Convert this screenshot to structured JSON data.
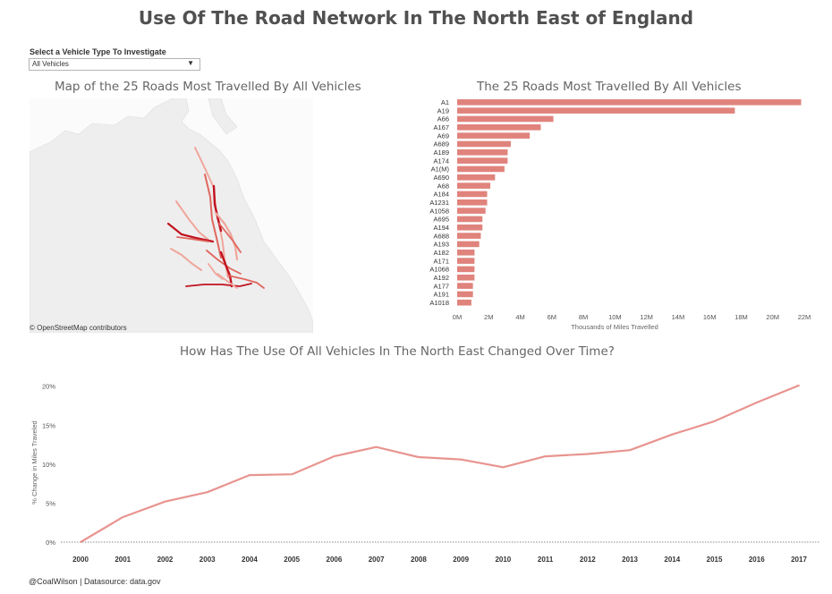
{
  "title": "Use Of The Road Network In The North East of England",
  "filter": {
    "label": "Select a Vehicle Type To Investigate",
    "selected": "All Vehicles"
  },
  "map": {
    "title": "Map of the 25 Roads Most Travelled By All Vehicles",
    "attribution": "© OpenStreetMap contributors"
  },
  "footer": "@CoalWilson | Datasource: data.gov",
  "colors": {
    "bar": "#e0837c",
    "line": "#e89490",
    "map_dark": "#c1121f",
    "map_light": "#f0a59b"
  },
  "chart_data": [
    {
      "type": "bar",
      "title": "The 25 Roads Most Travelled By All Vehicles",
      "xlabel": "Thousands of Miles Travelled",
      "ylabel": "",
      "categories": [
        "A1",
        "A19",
        "A66",
        "A167",
        "A69",
        "A689",
        "A189",
        "A174",
        "A1(M)",
        "A690",
        "A68",
        "A184",
        "A1231",
        "A1058",
        "A695",
        "A194",
        "A688",
        "A193",
        "A182",
        "A171",
        "A1068",
        "A192",
        "A177",
        "A191",
        "A1018"
      ],
      "values": [
        21.8,
        17.6,
        6.1,
        5.3,
        4.6,
        3.4,
        3.2,
        3.2,
        3.0,
        2.4,
        2.1,
        1.9,
        1.9,
        1.8,
        1.6,
        1.6,
        1.5,
        1.4,
        1.1,
        1.1,
        1.1,
        1.1,
        1.0,
        1.0,
        0.9
      ],
      "unit": "M",
      "xlim": [
        0,
        22
      ],
      "xticks": [
        "0M",
        "2M",
        "4M",
        "6M",
        "8M",
        "10M",
        "12M",
        "14M",
        "16M",
        "18M",
        "20M",
        "22M"
      ],
      "grid": false
    },
    {
      "type": "line",
      "title": "How Has The Use Of All Vehicles In The North East Changed Over Time?",
      "xlabel": "",
      "ylabel": "% Change in Miles Traveled",
      "x": [
        "2000",
        "2001",
        "2002",
        "2003",
        "2004",
        "2005",
        "2006",
        "2007",
        "2008",
        "2009",
        "2010",
        "2011",
        "2012",
        "2013",
        "2014",
        "2015",
        "2016",
        "2017"
      ],
      "series": [
        {
          "values": [
            0.0,
            3.2,
            5.2,
            6.4,
            8.6,
            8.7,
            11.0,
            12.2,
            10.9,
            10.6,
            9.6,
            11.0,
            11.3,
            11.8,
            13.8,
            15.5,
            17.9,
            20.1
          ]
        }
      ],
      "ylim": [
        0,
        21
      ],
      "yticks": [
        "0%",
        "5%",
        "10%",
        "15%",
        "20%"
      ],
      "grid": false,
      "zero_line": "dotted"
    }
  ]
}
